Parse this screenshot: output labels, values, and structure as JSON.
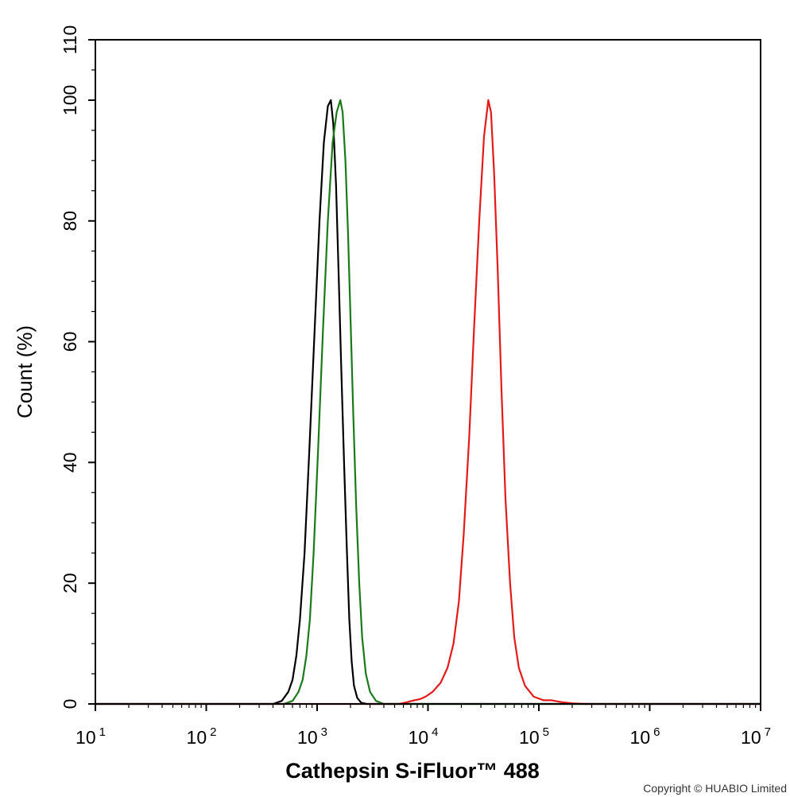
{
  "chart_data": {
    "type": "line",
    "title": "",
    "xlabel": "Cathepsin S-iFluor™ 488",
    "ylabel": "Count  (%)",
    "x_scale": "log",
    "xlim": [
      10,
      10000000
    ],
    "ylim": [
      0,
      110
    ],
    "x_ticks": [
      {
        "value": 10,
        "base": "10",
        "exp": "1"
      },
      {
        "value": 100,
        "base": "10",
        "exp": "2"
      },
      {
        "value": 1000,
        "base": "10",
        "exp": "3"
      },
      {
        "value": 10000,
        "base": "10",
        "exp": "4"
      },
      {
        "value": 100000,
        "base": "10",
        "exp": "5"
      },
      {
        "value": 1000000,
        "base": "10",
        "exp": "6"
      },
      {
        "value": 10000000,
        "base": "10",
        "exp": "7"
      }
    ],
    "y_ticks": [
      "0",
      "20",
      "40",
      "60",
      "80",
      "100",
      "110"
    ],
    "grid": false,
    "series": [
      {
        "color": "#000000",
        "points": [
          [
            400,
            0
          ],
          [
            480,
            0.5
          ],
          [
            550,
            2
          ],
          [
            600,
            4
          ],
          [
            650,
            8
          ],
          [
            700,
            14
          ],
          [
            770,
            25
          ],
          [
            850,
            42
          ],
          [
            950,
            62
          ],
          [
            1050,
            80
          ],
          [
            1150,
            93
          ],
          [
            1250,
            99
          ],
          [
            1330,
            100
          ],
          [
            1400,
            96
          ],
          [
            1480,
            86
          ],
          [
            1560,
            72
          ],
          [
            1650,
            56
          ],
          [
            1750,
            40
          ],
          [
            1850,
            26
          ],
          [
            1950,
            14
          ],
          [
            2050,
            7
          ],
          [
            2150,
            3
          ],
          [
            2300,
            1
          ],
          [
            2500,
            0.2
          ],
          [
            2800,
            0
          ]
        ]
      },
      {
        "color": "#1a7a1a",
        "points": [
          [
            500,
            0
          ],
          [
            600,
            0.5
          ],
          [
            680,
            2
          ],
          [
            740,
            4
          ],
          [
            800,
            8
          ],
          [
            860,
            14
          ],
          [
            930,
            25
          ],
          [
            1020,
            42
          ],
          [
            1130,
            62
          ],
          [
            1250,
            80
          ],
          [
            1380,
            93
          ],
          [
            1500,
            98
          ],
          [
            1620,
            100
          ],
          [
            1700,
            98
          ],
          [
            1800,
            90
          ],
          [
            1900,
            78
          ],
          [
            2000,
            64
          ],
          [
            2120,
            48
          ],
          [
            2250,
            33
          ],
          [
            2400,
            20
          ],
          [
            2550,
            11
          ],
          [
            2750,
            5
          ],
          [
            3000,
            2
          ],
          [
            3400,
            0.5
          ],
          [
            4000,
            0
          ]
        ]
      },
      {
        "color": "#e41a1a",
        "points": [
          [
            5500,
            0
          ],
          [
            6500,
            0.3
          ],
          [
            7500,
            0.6
          ],
          [
            8500,
            0.8
          ],
          [
            9500,
            1.2
          ],
          [
            11000,
            2
          ],
          [
            13000,
            3.5
          ],
          [
            15000,
            6
          ],
          [
            17000,
            10
          ],
          [
            19000,
            17
          ],
          [
            21000,
            28
          ],
          [
            23500,
            44
          ],
          [
            26000,
            62
          ],
          [
            29000,
            80
          ],
          [
            32000,
            94
          ],
          [
            35000,
            100
          ],
          [
            37000,
            98
          ],
          [
            39500,
            88
          ],
          [
            42500,
            72
          ],
          [
            46000,
            52
          ],
          [
            50000,
            34
          ],
          [
            55000,
            20
          ],
          [
            60000,
            11
          ],
          [
            66000,
            6
          ],
          [
            75000,
            3
          ],
          [
            90000,
            1.2
          ],
          [
            110000,
            0.6
          ],
          [
            130000,
            0.6
          ],
          [
            160000,
            0.3
          ],
          [
            200000,
            0.1
          ],
          [
            260000,
            0
          ]
        ]
      }
    ]
  },
  "copyright": "Copyright © HUABIO Limited"
}
